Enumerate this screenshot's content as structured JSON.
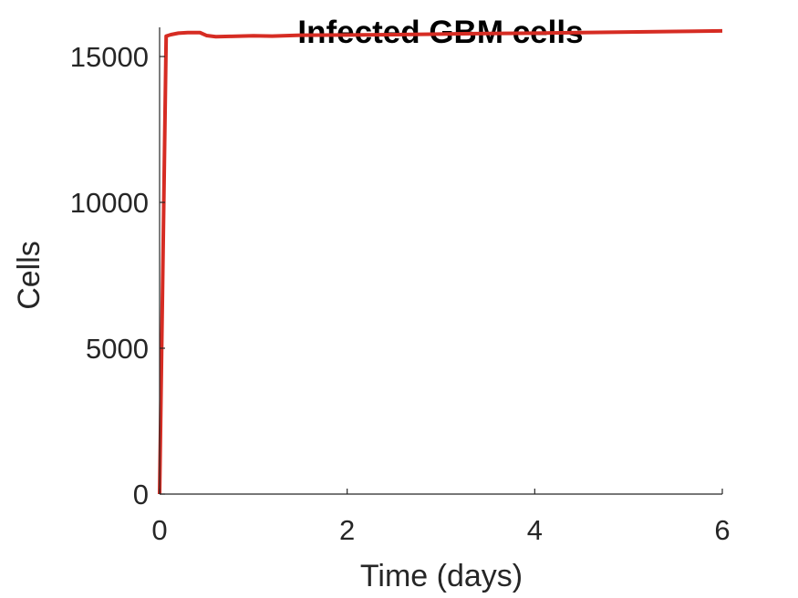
{
  "chart_data": {
    "type": "line",
    "title": "Infected GBM cells",
    "xlabel": "Time (days)",
    "ylabel": "Cells",
    "xlim": [
      0,
      6
    ],
    "ylim": [
      0,
      16000
    ],
    "xticks": [
      0,
      2,
      4,
      6
    ],
    "yticks": [
      0,
      5000,
      10000,
      15000
    ],
    "grid": false,
    "series": [
      {
        "color": "#d62c23",
        "x": [
          0,
          0.07,
          0.12,
          0.2,
          0.3,
          0.43,
          0.5,
          0.6,
          0.75,
          1.0,
          1.2,
          1.5,
          2.0,
          2.5,
          3.0,
          3.5,
          4.0,
          4.5,
          5.0,
          5.5,
          6.0
        ],
        "y": [
          0,
          15700,
          15750,
          15800,
          15820,
          15820,
          15720,
          15680,
          15690,
          15710,
          15700,
          15730,
          15740,
          15750,
          15770,
          15790,
          15800,
          15820,
          15840,
          15860,
          15880
        ]
      }
    ]
  }
}
